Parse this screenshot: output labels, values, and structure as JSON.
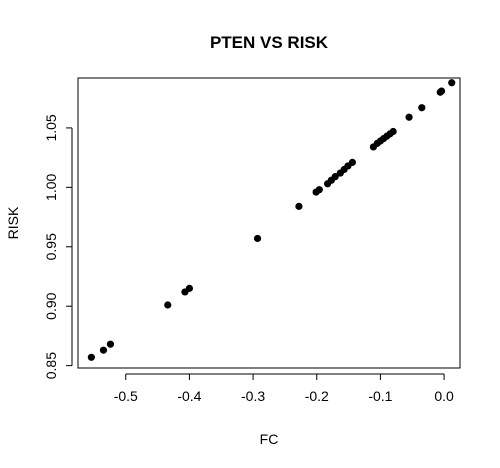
{
  "chart_data": {
    "type": "scatter",
    "title": "PTEN VS RISK",
    "xlabel": "FC",
    "ylabel": "RISK",
    "xlim": [
      -0.575,
      0.025
    ],
    "ylim": [
      0.848,
      1.092
    ],
    "x_ticks": [
      {
        "value": -0.5,
        "label": "-0.5"
      },
      {
        "value": -0.4,
        "label": "-0.4"
      },
      {
        "value": -0.3,
        "label": "-0.3"
      },
      {
        "value": -0.2,
        "label": "-0.2"
      },
      {
        "value": -0.1,
        "label": "-0.1"
      },
      {
        "value": 0.0,
        "label": "0.0"
      }
    ],
    "y_ticks": [
      {
        "value": 0.85,
        "label": "0.85"
      },
      {
        "value": 0.9,
        "label": "0.90"
      },
      {
        "value": 0.95,
        "label": "0.95"
      },
      {
        "value": 1.0,
        "label": "1.00"
      },
      {
        "value": 1.05,
        "label": "1.05"
      }
    ],
    "grid": false,
    "point_color": "#000000",
    "series": [
      {
        "points": [
          {
            "x": -0.554,
            "y": 0.857
          },
          {
            "x": -0.535,
            "y": 0.863
          },
          {
            "x": -0.524,
            "y": 0.868
          },
          {
            "x": -0.434,
            "y": 0.901
          },
          {
            "x": -0.407,
            "y": 0.912
          },
          {
            "x": -0.4,
            "y": 0.915
          },
          {
            "x": -0.293,
            "y": 0.957
          },
          {
            "x": -0.228,
            "y": 0.984
          },
          {
            "x": -0.201,
            "y": 0.996
          },
          {
            "x": -0.196,
            "y": 0.998
          },
          {
            "x": -0.183,
            "y": 1.003
          },
          {
            "x": -0.177,
            "y": 1.006
          },
          {
            "x": -0.171,
            "y": 1.009
          },
          {
            "x": -0.163,
            "y": 1.012
          },
          {
            "x": -0.157,
            "y": 1.015
          },
          {
            "x": -0.151,
            "y": 1.018
          },
          {
            "x": -0.144,
            "y": 1.021
          },
          {
            "x": -0.111,
            "y": 1.034
          },
          {
            "x": -0.105,
            "y": 1.037
          },
          {
            "x": -0.1,
            "y": 1.039
          },
          {
            "x": -0.095,
            "y": 1.041
          },
          {
            "x": -0.09,
            "y": 1.043
          },
          {
            "x": -0.085,
            "y": 1.045
          },
          {
            "x": -0.08,
            "y": 1.047
          },
          {
            "x": -0.055,
            "y": 1.059
          },
          {
            "x": -0.035,
            "y": 1.067
          },
          {
            "x": -0.006,
            "y": 1.08
          },
          {
            "x": -0.004,
            "y": 1.081
          },
          {
            "x": 0.012,
            "y": 1.088
          }
        ]
      }
    ]
  }
}
